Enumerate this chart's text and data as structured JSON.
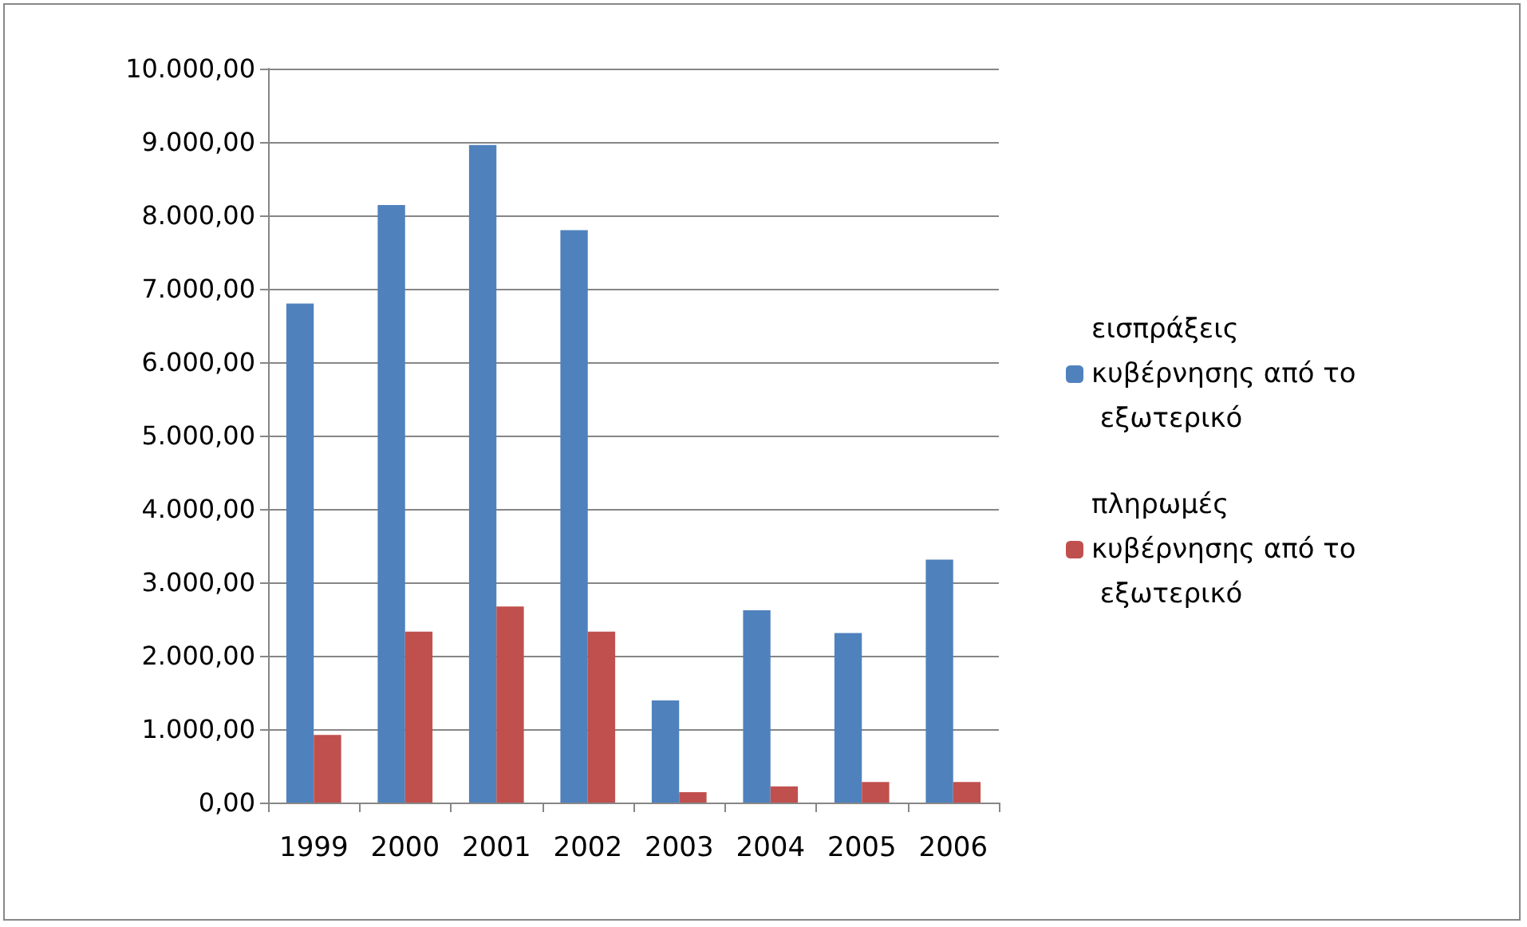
{
  "chart_data": {
    "type": "bar",
    "categories": [
      "1999",
      "2000",
      "2001",
      "2002",
      "2003",
      "2004",
      "2005",
      "2006"
    ],
    "series": [
      {
        "name": "εισπράξεις κυβέρνησης από το εξωτερικό",
        "color": "#4f81bd",
        "values": [
          6800,
          8140,
          8960,
          7800,
          1390,
          2620,
          2310,
          3310
        ]
      },
      {
        "name": "πληρωμές κυβέρνησης από το εξωτερικό",
        "color": "#c0504d",
        "values": [
          920,
          2330,
          2670,
          2330,
          140,
          220,
          280,
          280
        ]
      }
    ],
    "ylim": [
      0,
      10000
    ],
    "yticks": [
      {
        "value": 0,
        "label": "0,00"
      },
      {
        "value": 1000,
        "label": "1.000,00"
      },
      {
        "value": 2000,
        "label": "2.000,00"
      },
      {
        "value": 3000,
        "label": "3.000,00"
      },
      {
        "value": 4000,
        "label": "4.000,00"
      },
      {
        "value": 5000,
        "label": "5.000,00"
      },
      {
        "value": 6000,
        "label": "6.000,00"
      },
      {
        "value": 7000,
        "label": "7.000,00"
      },
      {
        "value": 8000,
        "label": "8.000,00"
      },
      {
        "value": 9000,
        "label": "9.000,00"
      },
      {
        "value": 10000,
        "label": "10.000,00"
      }
    ],
    "grid": "y",
    "legend": "right"
  }
}
